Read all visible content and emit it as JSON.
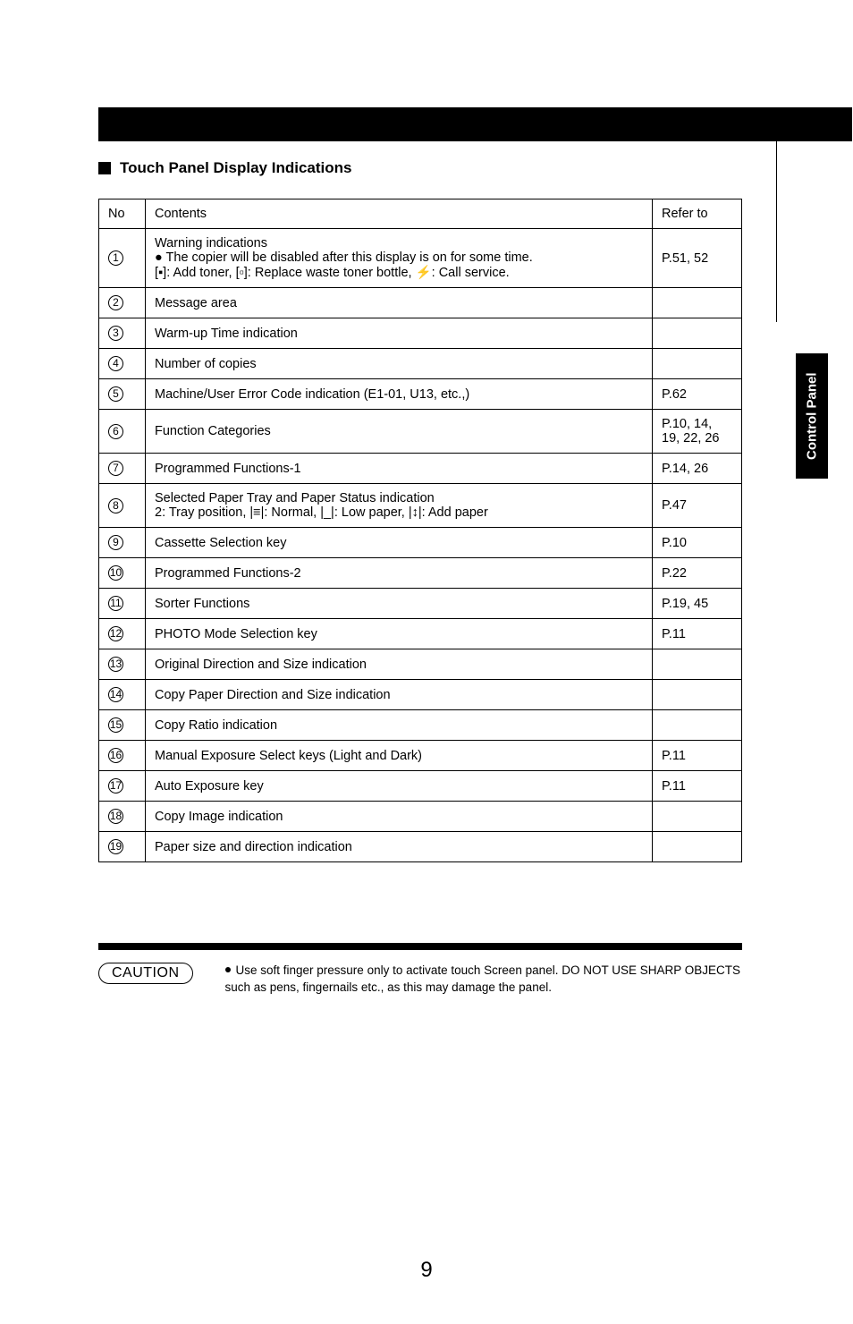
{
  "sideTab": "Control Panel",
  "heading": "Touch Panel Display Indications",
  "headers": {
    "no": "No",
    "contents": "Contents",
    "refer": "Refer to"
  },
  "rows": [
    {
      "no": "1",
      "contents": "Warning indications\n● The copier will be disabled after this display is on for some time.\n[▪]: Add toner, [▫]: Replace waste toner bottle, ⚡: Call service.",
      "refer": "P.51, 52"
    },
    {
      "no": "2",
      "contents": "Message area",
      "refer": ""
    },
    {
      "no": "3",
      "contents": "Warm-up Time indication",
      "refer": ""
    },
    {
      "no": "4",
      "contents": "Number of copies",
      "refer": ""
    },
    {
      "no": "5",
      "contents": "Machine/User Error Code indication (E1-01, U13, etc.,)",
      "refer": "P.62"
    },
    {
      "no": "6",
      "contents": "Function Categories",
      "refer": "P.10, 14, 19, 22, 26"
    },
    {
      "no": "7",
      "contents": "Programmed Functions-1",
      "refer": "P.14, 26"
    },
    {
      "no": "8",
      "contents": "Selected Paper Tray and Paper Status indication\n2: Tray position, |≡|: Normal, |_|: Low paper, |↕|: Add paper",
      "refer": "P.47"
    },
    {
      "no": "9",
      "contents": "Cassette Selection key",
      "refer": "P.10"
    },
    {
      "no": "10",
      "contents": "Programmed Functions-2",
      "refer": "P.22"
    },
    {
      "no": "11",
      "contents": "Sorter Functions",
      "refer": "P.19, 45"
    },
    {
      "no": "12",
      "contents": "PHOTO Mode Selection key",
      "refer": "P.11"
    },
    {
      "no": "13",
      "contents": "Original Direction and Size indication",
      "refer": ""
    },
    {
      "no": "14",
      "contents": "Copy Paper Direction and Size indication",
      "refer": ""
    },
    {
      "no": "15",
      "contents": "Copy Ratio indication",
      "refer": ""
    },
    {
      "no": "16",
      "contents": "Manual Exposure Select keys (Light and Dark)",
      "refer": "P.11"
    },
    {
      "no": "17",
      "contents": "Auto Exposure key",
      "refer": "P.11"
    },
    {
      "no": "18",
      "contents": "Copy Image indication",
      "refer": ""
    },
    {
      "no": "19",
      "contents": "Paper size and direction indication",
      "refer": ""
    }
  ],
  "caution": {
    "label": "CAUTION",
    "text": "Use soft finger pressure only to activate touch Screen panel. DO NOT USE SHARP OBJECTS such as pens, fingernails etc., as this may damage the panel."
  },
  "pageNumber": "9"
}
